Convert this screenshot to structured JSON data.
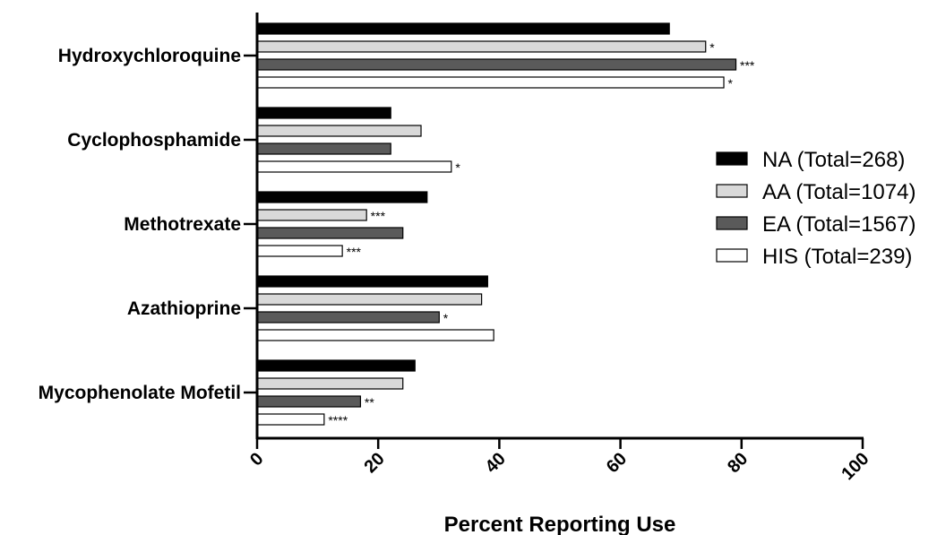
{
  "chart_data": {
    "type": "bar",
    "orientation": "horizontal",
    "categories": [
      "Hydroxychloroquine",
      "Cyclophosphamide",
      "Methotrexate",
      "Azathioprine",
      "Mycophenolate Mofetil"
    ],
    "series": [
      {
        "name": "NA (Total=268)",
        "color": "#000000",
        "values": [
          68,
          22,
          28,
          38,
          26
        ],
        "annotations": [
          "",
          "",
          "",
          "",
          ""
        ]
      },
      {
        "name": "AA (Total=1074)",
        "color": "#d9d9d9",
        "values": [
          74,
          27,
          18,
          37,
          24
        ],
        "annotations": [
          "*",
          "",
          "***",
          "",
          ""
        ]
      },
      {
        "name": "EA (Total=1567)",
        "color": "#5a5a5a",
        "values": [
          79,
          22,
          24,
          30,
          17
        ],
        "annotations": [
          "***",
          "",
          "",
          "*",
          "**"
        ]
      },
      {
        "name": "HIS (Total=239)",
        "color": "#ffffff",
        "values": [
          77,
          32,
          14,
          39,
          11
        ],
        "annotations": [
          "*",
          "*",
          "***",
          "",
          "****"
        ]
      }
    ],
    "xlabel": "Percent Reporting Use",
    "ylabel": "",
    "xlim": [
      0,
      100
    ],
    "xticks": [
      0,
      20,
      40,
      60,
      80,
      100
    ],
    "legend_position": "right",
    "grid": false
  }
}
